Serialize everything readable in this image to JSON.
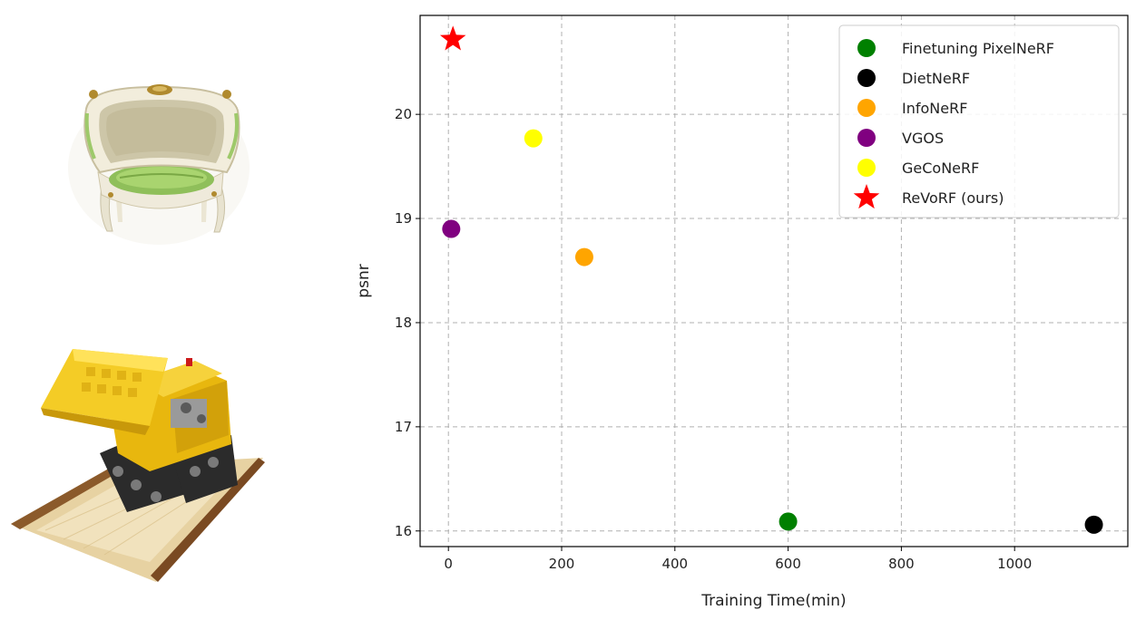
{
  "chart_data": {
    "type": "scatter",
    "title": "",
    "xlabel": "Training Time(min)",
    "ylabel": "psnr",
    "xlim": [
      -50,
      1200
    ],
    "ylim": [
      15.85,
      20.95
    ],
    "xticks": [
      0,
      200,
      400,
      600,
      800,
      1000
    ],
    "yticks": [
      16,
      17,
      18,
      19,
      20
    ],
    "grid": true,
    "legend_position": "top-right",
    "series": [
      {
        "name": "Finetuning PixelNeRF",
        "marker": "circle",
        "color": "#008000",
        "points": [
          {
            "x": 600,
            "y": 16.09
          }
        ]
      },
      {
        "name": "DietNeRF",
        "marker": "circle",
        "color": "#000000",
        "points": [
          {
            "x": 1140,
            "y": 16.06
          }
        ]
      },
      {
        "name": "InfoNeRF",
        "marker": "circle",
        "color": "#ffa500",
        "points": [
          {
            "x": 240,
            "y": 18.63
          }
        ]
      },
      {
        "name": "VGOS",
        "marker": "circle",
        "color": "#800080",
        "points": [
          {
            "x": 5,
            "y": 18.9
          }
        ]
      },
      {
        "name": "GeCoNeRF",
        "marker": "circle",
        "color": "#ffff00",
        "points": [
          {
            "x": 150,
            "y": 19.77
          }
        ]
      },
      {
        "name": "ReVoRF (ours)",
        "marker": "star",
        "color": "#ff0000",
        "points": [
          {
            "x": 8,
            "y": 20.72
          }
        ]
      }
    ]
  },
  "thumbnails": [
    {
      "subject": "chair-render"
    },
    {
      "subject": "lego-bulldozer-render"
    }
  ]
}
